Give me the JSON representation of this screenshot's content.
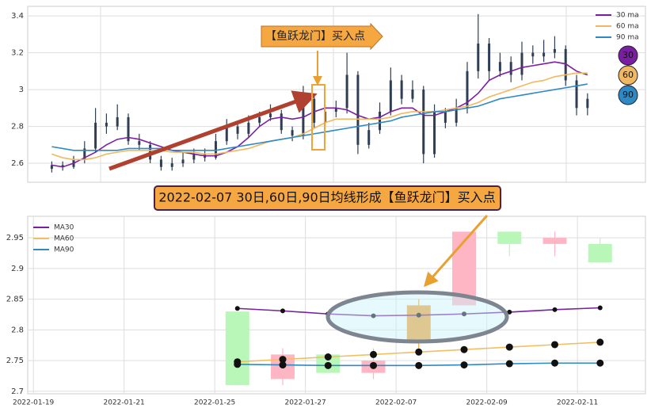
{
  "chart_data": [
    {
      "type": "candlestick",
      "annotation": "【鱼跃龙门】买入点",
      "candle_color": "#2f3e55",
      "xlim": [
        -2.2,
        54.3
      ],
      "ylim": [
        2.497,
        3.452
      ],
      "yticks": [
        2.6,
        2.8,
        3.0,
        3.2,
        3.4
      ],
      "grid": true,
      "legend": "upper right",
      "x": [
        0,
        1,
        2,
        3,
        4,
        5,
        6,
        7,
        8,
        9,
        10,
        11,
        12,
        13,
        14,
        15,
        16,
        17,
        18,
        19,
        20,
        21,
        22,
        23,
        24,
        25,
        26,
        27,
        28,
        29,
        30,
        31,
        32,
        33,
        34,
        35,
        36,
        37,
        38,
        39,
        40,
        41,
        42,
        43,
        44,
        45,
        46,
        47,
        48,
        49
      ],
      "open": [
        2.57,
        2.59,
        2.58,
        2.62,
        2.68,
        2.82,
        2.8,
        2.85,
        2.72,
        2.7,
        2.62,
        2.58,
        2.6,
        2.62,
        2.65,
        2.63,
        2.72,
        2.8,
        2.76,
        2.82,
        2.85,
        2.87,
        2.78,
        2.75,
        2.95,
        2.82,
        2.88,
        2.9,
        3.08,
        2.7,
        2.78,
        2.88,
        3.05,
        2.95,
        3.0,
        2.65,
        2.88,
        2.82,
        2.9,
        3.1,
        3.25,
        3.1,
        3.15,
        3.08,
        3.2,
        3.18,
        3.2,
        3.22,
        3.05,
        2.9
      ],
      "close": [
        2.59,
        2.58,
        2.62,
        2.68,
        2.82,
        2.8,
        2.85,
        2.72,
        2.7,
        2.62,
        2.58,
        2.6,
        2.62,
        2.65,
        2.63,
        2.72,
        2.8,
        2.76,
        2.82,
        2.85,
        2.87,
        2.78,
        2.75,
        2.95,
        2.82,
        2.88,
        2.9,
        3.08,
        2.7,
        2.78,
        2.88,
        3.05,
        2.95,
        3.0,
        2.65,
        2.88,
        2.82,
        2.9,
        3.1,
        3.25,
        3.1,
        3.15,
        3.08,
        3.2,
        3.18,
        3.2,
        3.22,
        3.05,
        2.9,
        2.95
      ],
      "high": [
        2.61,
        2.61,
        2.64,
        2.72,
        2.9,
        2.87,
        2.92,
        2.87,
        2.76,
        2.72,
        2.64,
        2.63,
        2.66,
        2.68,
        2.68,
        2.76,
        2.84,
        2.83,
        2.86,
        2.88,
        2.92,
        2.89,
        2.8,
        3.02,
        2.97,
        2.92,
        2.94,
        3.2,
        3.1,
        2.82,
        2.93,
        3.12,
        3.08,
        3.05,
        3.02,
        2.92,
        2.9,
        2.95,
        3.15,
        3.41,
        3.28,
        3.2,
        3.18,
        3.26,
        3.24,
        3.27,
        3.29,
        3.24,
        3.08,
        2.98
      ],
      "low": [
        2.55,
        2.56,
        2.57,
        2.6,
        2.66,
        2.76,
        2.78,
        2.7,
        2.67,
        2.6,
        2.56,
        2.56,
        2.58,
        2.6,
        2.61,
        2.62,
        2.7,
        2.73,
        2.74,
        2.8,
        2.83,
        2.76,
        2.72,
        2.73,
        2.79,
        2.8,
        2.85,
        2.87,
        2.65,
        2.68,
        2.76,
        2.86,
        2.92,
        2.93,
        2.6,
        2.63,
        2.79,
        2.8,
        2.87,
        3.06,
        3.05,
        3.07,
        3.04,
        3.05,
        3.14,
        3.15,
        3.17,
        3.02,
        2.86,
        2.86
      ],
      "series": [
        {
          "name": "30 ma",
          "badge": "30",
          "color": "#7a1fa2",
          "values": [
            2.59,
            2.58,
            2.6,
            2.63,
            2.66,
            2.7,
            2.73,
            2.74,
            2.73,
            2.71,
            2.69,
            2.67,
            2.66,
            2.65,
            2.64,
            2.64,
            2.66,
            2.69,
            2.74,
            2.8,
            2.84,
            2.85,
            2.84,
            2.85,
            2.88,
            2.9,
            2.9,
            2.89,
            2.86,
            2.84,
            2.85,
            2.88,
            2.9,
            2.9,
            2.86,
            2.86,
            2.88,
            2.9,
            2.93,
            2.98,
            3.05,
            3.08,
            3.1,
            3.12,
            3.13,
            3.14,
            3.15,
            3.14,
            3.1,
            3.08
          ]
        },
        {
          "name": "60 ma",
          "badge": "60",
          "color": "#f0b860",
          "values": [
            2.65,
            2.63,
            2.62,
            2.62,
            2.63,
            2.65,
            2.66,
            2.67,
            2.67,
            2.67,
            2.67,
            2.66,
            2.66,
            2.66,
            2.65,
            2.65,
            2.66,
            2.67,
            2.68,
            2.7,
            2.72,
            2.73,
            2.74,
            2.76,
            2.79,
            2.82,
            2.84,
            2.84,
            2.84,
            2.84,
            2.84,
            2.85,
            2.87,
            2.88,
            2.88,
            2.88,
            2.89,
            2.9,
            2.91,
            2.93,
            2.96,
            2.98,
            3.0,
            3.02,
            3.04,
            3.05,
            3.07,
            3.08,
            3.09,
            3.09
          ]
        },
        {
          "name": "90 ma",
          "badge": "90",
          "color": "#2f8ac4",
          "values": [
            2.69,
            2.68,
            2.67,
            2.67,
            2.67,
            2.67,
            2.67,
            2.68,
            2.68,
            2.68,
            2.68,
            2.67,
            2.67,
            2.67,
            2.67,
            2.67,
            2.68,
            2.69,
            2.7,
            2.71,
            2.72,
            2.73,
            2.74,
            2.75,
            2.76,
            2.77,
            2.78,
            2.79,
            2.8,
            2.81,
            2.82,
            2.83,
            2.85,
            2.86,
            2.87,
            2.88,
            2.88,
            2.89,
            2.9,
            2.91,
            2.93,
            2.95,
            2.96,
            2.97,
            2.98,
            2.99,
            3.0,
            3.01,
            3.02,
            3.03
          ]
        }
      ]
    },
    {
      "type": "candlestick",
      "title": "2022-02-07 30日,60日,90日均线形成【鱼跃龙门】买入点",
      "xlim": [
        -0.25,
        27
      ],
      "ylim": [
        2.696,
        2.985
      ],
      "yticks": [
        2.7,
        2.75,
        2.8,
        2.85,
        2.9,
        2.95
      ],
      "xticks": [
        {
          "value": 0,
          "label": "2022-01-19"
        },
        {
          "value": 4,
          "label": "2022-01-21"
        },
        {
          "value": 8,
          "label": "2022-01-25"
        },
        {
          "value": 12,
          "label": "2022-01-27"
        },
        {
          "value": 16,
          "label": "2022-02-07"
        },
        {
          "value": 20,
          "label": "2022-02-09"
        },
        {
          "value": 24,
          "label": "2022-02-11"
        }
      ],
      "grid": true,
      "legend": "upper left",
      "x": [
        9,
        11,
        13,
        15,
        17,
        19,
        21,
        23,
        25
      ],
      "open": [
        2.83,
        2.72,
        2.76,
        2.73,
        2.78,
        2.84,
        2.96,
        2.94,
        2.94
      ],
      "close": [
        2.71,
        2.76,
        2.73,
        2.75,
        2.84,
        2.96,
        2.94,
        2.95,
        2.91
      ],
      "high": [
        2.83,
        2.77,
        2.76,
        2.77,
        2.85,
        2.96,
        2.96,
        2.96,
        2.95
      ],
      "low": [
        2.71,
        2.71,
        2.73,
        2.72,
        2.77,
        2.84,
        2.92,
        2.92,
        2.91
      ],
      "colors": [
        "#b8f7b8",
        "#ffb6c4",
        "#b8f7b8",
        "#ffb6c4",
        "#f0a33a",
        "#ffb6c4",
        "#b8f7b8",
        "#ffb6c4",
        "#b8f7b8"
      ],
      "series": [
        {
          "name": "MA30",
          "color": "#7a1fa2",
          "values": [
            2.835,
            2.831,
            2.826,
            2.823,
            2.824,
            2.826,
            2.829,
            2.833,
            2.836
          ]
        },
        {
          "name": "MA60",
          "color": "#f0c060",
          "values": [
            2.748,
            2.752,
            2.756,
            2.76,
            2.764,
            2.768,
            2.772,
            2.776,
            2.78
          ]
        },
        {
          "name": "MA90",
          "color": "#2f8ac4",
          "values": [
            2.744,
            2.743,
            2.742,
            2.742,
            2.742,
            2.743,
            2.745,
            2.746,
            2.746
          ]
        }
      ]
    }
  ]
}
